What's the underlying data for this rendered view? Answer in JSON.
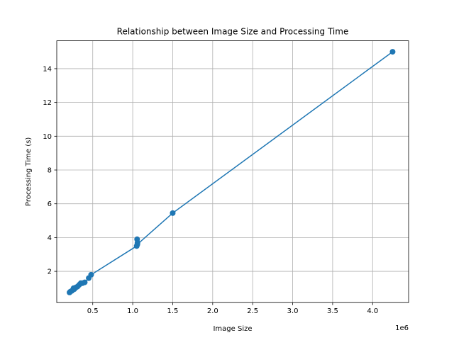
{
  "chart_data": {
    "type": "line",
    "title": "Relationship between Image Size and Processing Time",
    "xlabel": "Image Size",
    "ylabel": "Processing Time (s)",
    "x_offset_label": "1e6",
    "xlim": [
      50000,
      4450000
    ],
    "ylim": [
      0.15,
      15.65
    ],
    "x_ticks": [
      500000,
      1000000,
      1500000,
      2000000,
      2500000,
      3000000,
      3500000,
      4000000
    ],
    "x_tick_labels": [
      "0.5",
      "1.0",
      "1.5",
      "2.0",
      "2.5",
      "3.0",
      "3.5",
      "4.0"
    ],
    "y_ticks": [
      2,
      4,
      6,
      8,
      10,
      12,
      14
    ],
    "y_tick_labels": [
      "2",
      "4",
      "6",
      "8",
      "10",
      "12",
      "14"
    ],
    "grid": true,
    "series": [
      {
        "color": "#1f77b4",
        "marker": "circle",
        "x": [
          210000,
          220000,
          240000,
          260000,
          270000,
          290000,
          310000,
          330000,
          350000,
          370000,
          400000,
          450000,
          480000,
          1050000,
          1060000,
          1055000,
          1058000,
          1500000,
          4250000
        ],
        "y": [
          0.75,
          0.8,
          0.85,
          1.0,
          0.95,
          1.05,
          1.1,
          1.2,
          1.3,
          1.3,
          1.35,
          1.6,
          1.8,
          3.5,
          3.7,
          3.9,
          3.6,
          5.45,
          15.0
        ]
      }
    ]
  }
}
